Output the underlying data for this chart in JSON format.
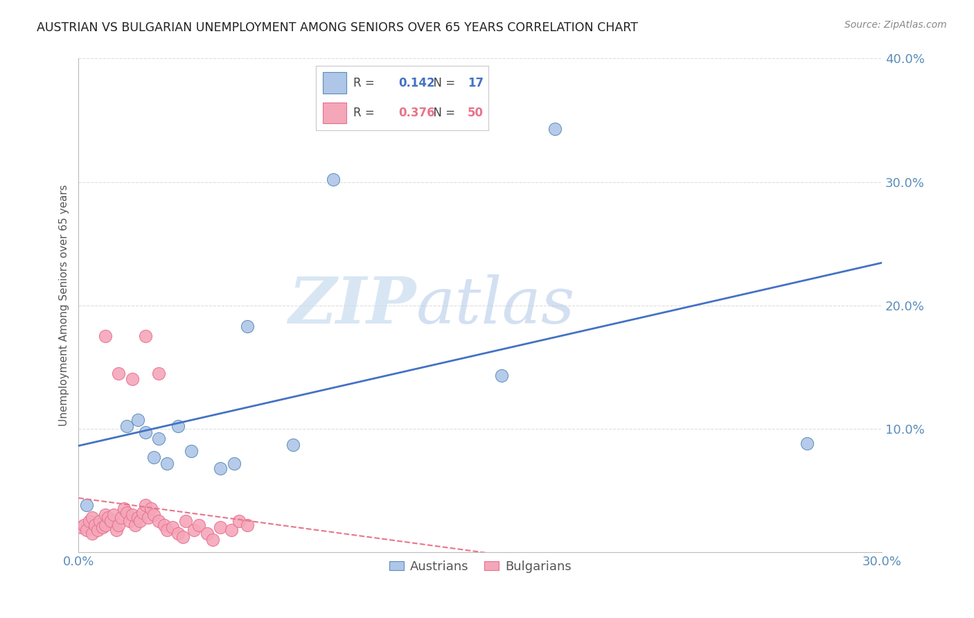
{
  "title": "AUSTRIAN VS BULGARIAN UNEMPLOYMENT AMONG SENIORS OVER 65 YEARS CORRELATION CHART",
  "source": "Source: ZipAtlas.com",
  "ylabel": "Unemployment Among Seniors over 65 years",
  "legend_austrians": {
    "R": "0.142",
    "N": "17",
    "label": "Austrians"
  },
  "legend_bulgarians": {
    "R": "0.376",
    "N": "50",
    "label": "Bulgarians"
  },
  "color_austrians_fill": "#AEC6E8",
  "color_bulgarians_fill": "#F4A7B9",
  "color_austrians_edge": "#5B8DB8",
  "color_bulgarians_edge": "#E87090",
  "color_austrians_line": "#4472C4",
  "color_bulgarians_line": "#E8748A",
  "color_diagonal": "#C8A0A0",
  "xlim": [
    0.0,
    0.3
  ],
  "ylim": [
    0.0,
    0.4
  ],
  "xticks": [
    0.0,
    0.05,
    0.1,
    0.15,
    0.2,
    0.25,
    0.3
  ],
  "yticks": [
    0.0,
    0.1,
    0.2,
    0.3,
    0.4
  ],
  "ytick_labels_right": [
    "",
    "10.0%",
    "20.0%",
    "30.0%",
    "40.0%"
  ],
  "austrians_x": [
    0.003,
    0.018,
    0.022,
    0.025,
    0.028,
    0.03,
    0.033,
    0.037,
    0.042,
    0.053,
    0.058,
    0.063,
    0.08,
    0.095,
    0.158,
    0.178,
    0.272
  ],
  "austrians_y": [
    0.038,
    0.102,
    0.107,
    0.097,
    0.077,
    0.092,
    0.072,
    0.102,
    0.082,
    0.068,
    0.072,
    0.183,
    0.087,
    0.302,
    0.143,
    0.343,
    0.088
  ],
  "bulgarians_x": [
    0.001,
    0.002,
    0.003,
    0.004,
    0.005,
    0.005,
    0.006,
    0.007,
    0.008,
    0.009,
    0.01,
    0.01,
    0.011,
    0.012,
    0.013,
    0.014,
    0.015,
    0.016,
    0.017,
    0.018,
    0.019,
    0.02,
    0.021,
    0.022,
    0.023,
    0.024,
    0.025,
    0.026,
    0.027,
    0.028,
    0.03,
    0.032,
    0.033,
    0.035,
    0.037,
    0.039,
    0.04,
    0.043,
    0.045,
    0.048,
    0.05,
    0.053,
    0.057,
    0.06,
    0.063,
    0.01,
    0.015,
    0.02,
    0.025,
    0.03
  ],
  "bulgarians_y": [
    0.02,
    0.022,
    0.018,
    0.025,
    0.015,
    0.028,
    0.022,
    0.018,
    0.025,
    0.02,
    0.03,
    0.022,
    0.028,
    0.025,
    0.03,
    0.018,
    0.022,
    0.028,
    0.035,
    0.032,
    0.025,
    0.03,
    0.022,
    0.028,
    0.025,
    0.032,
    0.038,
    0.028,
    0.035,
    0.03,
    0.025,
    0.022,
    0.018,
    0.02,
    0.015,
    0.012,
    0.025,
    0.018,
    0.022,
    0.015,
    0.01,
    0.02,
    0.018,
    0.025,
    0.022,
    0.175,
    0.145,
    0.14,
    0.175,
    0.145
  ],
  "watermark_zip": "ZIP",
  "watermark_atlas": "atlas",
  "background_color": "#FFFFFF",
  "grid_color": "#DDDDDD",
  "tick_label_color": "#5B8DB8",
  "ylabel_color": "#555555",
  "title_color": "#222222",
  "source_color": "#888888"
}
